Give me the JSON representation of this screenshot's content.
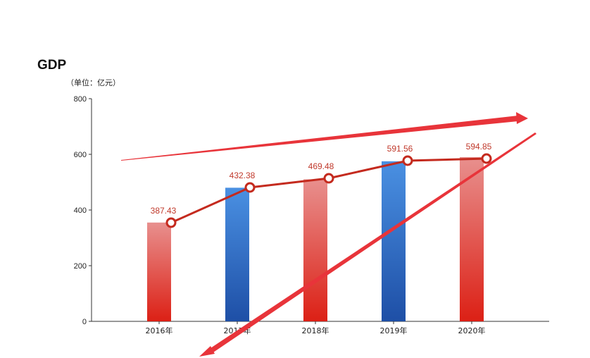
{
  "chart_data": {
    "type": "bar",
    "title": "GDP",
    "unit_label": "（单位：亿元）",
    "categories": [
      "2016年",
      "2017年",
      "2018年",
      "2019年",
      "2020年"
    ],
    "bar_values": [
      355,
      480,
      510,
      575,
      590
    ],
    "bar_colors": [
      "red",
      "blue",
      "red",
      "blue",
      "red"
    ],
    "line_values": [
      387.43,
      432.38,
      469.48,
      591.56,
      594.85
    ],
    "line_labels": [
      "387.43",
      "432.38",
      "469.48",
      "591.56",
      "594.85"
    ],
    "ylim": [
      0,
      800
    ],
    "yticks": [
      0,
      200,
      400,
      600,
      800
    ],
    "grid": false,
    "legend": "none"
  },
  "colors": {
    "red_top": "#e8908e",
    "red_bottom": "#dc2015",
    "blue_top": "#4a90e2",
    "blue_bottom": "#1e4fa6",
    "line": "#c42a1e",
    "arrow": "#e8343a"
  }
}
